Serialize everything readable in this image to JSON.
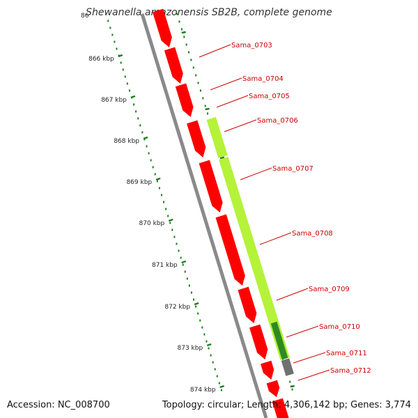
{
  "map": {
    "title": "Shewanella amazonensis SB2B, complete genome",
    "accession": "Accession: NC_008700",
    "summary": "Topology: circular; Length: 4,306,142 bp; Genes: 3,774",
    "colors": {
      "forward_gene": "#ff0000",
      "lime_feature": "#b5f23a",
      "dark_green_feature": "#2e8b22",
      "gray_feature": "#707070",
      "backbone": "#888888",
      "tick_green": "#1e7d1e",
      "label_red": "#cc0000"
    },
    "scale_labels": [
      "866 kbp",
      "867 kbp",
      "868 kbp",
      "869 kbp",
      "870 kbp",
      "871 kbp",
      "872 kbp",
      "873 kbp",
      "874 kbp"
    ],
    "partial_scale_label": "86",
    "gene_labels": [
      "Sama_0703",
      "Sama_0704",
      "Sama_0705",
      "Sama_0706",
      "Sama_0707",
      "Sama_0708",
      "Sama_0709",
      "Sama_0710",
      "Sama_0711",
      "Sama_0712"
    ]
  }
}
